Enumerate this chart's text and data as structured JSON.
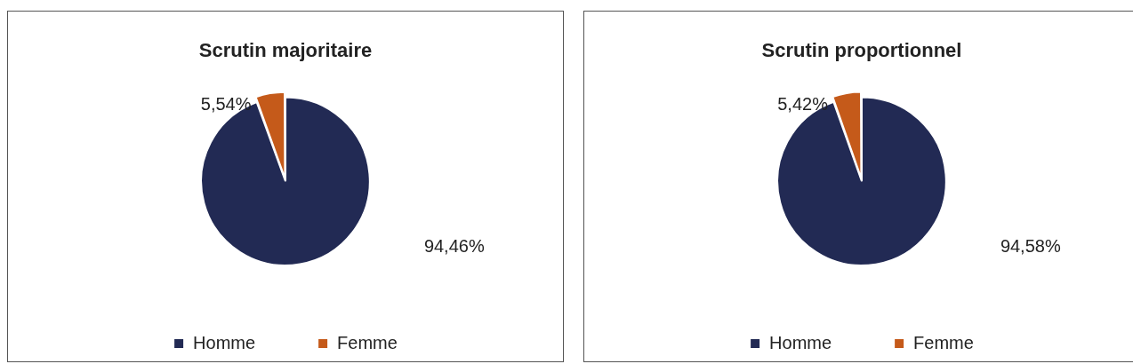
{
  "chart_data": [
    {
      "type": "pie",
      "title": "Scrutin majoritaire",
      "categories": [
        "Homme",
        "Femme"
      ],
      "values": [
        94.46,
        5.54
      ],
      "colors": [
        "#222a54",
        "#c55a1a"
      ],
      "value_labels": [
        "94,46%",
        "5,54%"
      ],
      "legend": "bottom"
    },
    {
      "type": "pie",
      "title": "Scrutin proportionnel",
      "categories": [
        "Homme",
        "Femme"
      ],
      "values": [
        94.58,
        5.42
      ],
      "colors": [
        "#222a54",
        "#c55a1a"
      ],
      "value_labels": [
        "94,58%",
        "5,42%"
      ],
      "legend": "bottom"
    }
  ]
}
